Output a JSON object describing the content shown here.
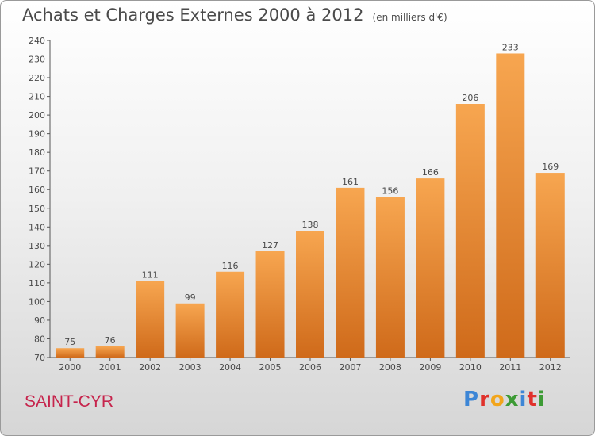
{
  "title": "Achats et Charges Externes 2000 à 2012",
  "subtitle": "(en milliers d'€)",
  "commune": "SAINT-CYR",
  "brand": {
    "text": "Proxiti",
    "letter_colors": [
      "#3d86d6",
      "#e0312b",
      "#f2a51b",
      "#3d9b35",
      "#3d86d6",
      "#e0312b",
      "#3d9b35"
    ]
  },
  "colors": {
    "bar_light": "#f7a650",
    "bar_dark": "#cf6a1a",
    "label": "#4a4a4a",
    "commune": "#c6244c"
  },
  "chart_data": {
    "type": "bar",
    "title": "Achats et Charges Externes 2000 à 2012",
    "subtitle": "(en milliers d'€)",
    "categories": [
      "2000",
      "2001",
      "2002",
      "2003",
      "2004",
      "2005",
      "2006",
      "2007",
      "2008",
      "2009",
      "2010",
      "2011",
      "2012"
    ],
    "values": [
      75,
      76,
      111,
      99,
      116,
      127,
      138,
      161,
      156,
      166,
      206,
      233,
      169
    ],
    "ylim": [
      70,
      240
    ],
    "yticks": [
      70,
      80,
      90,
      100,
      110,
      120,
      130,
      140,
      150,
      160,
      170,
      180,
      190,
      200,
      210,
      220,
      230,
      240
    ],
    "grid": false,
    "data_labels": true
  }
}
